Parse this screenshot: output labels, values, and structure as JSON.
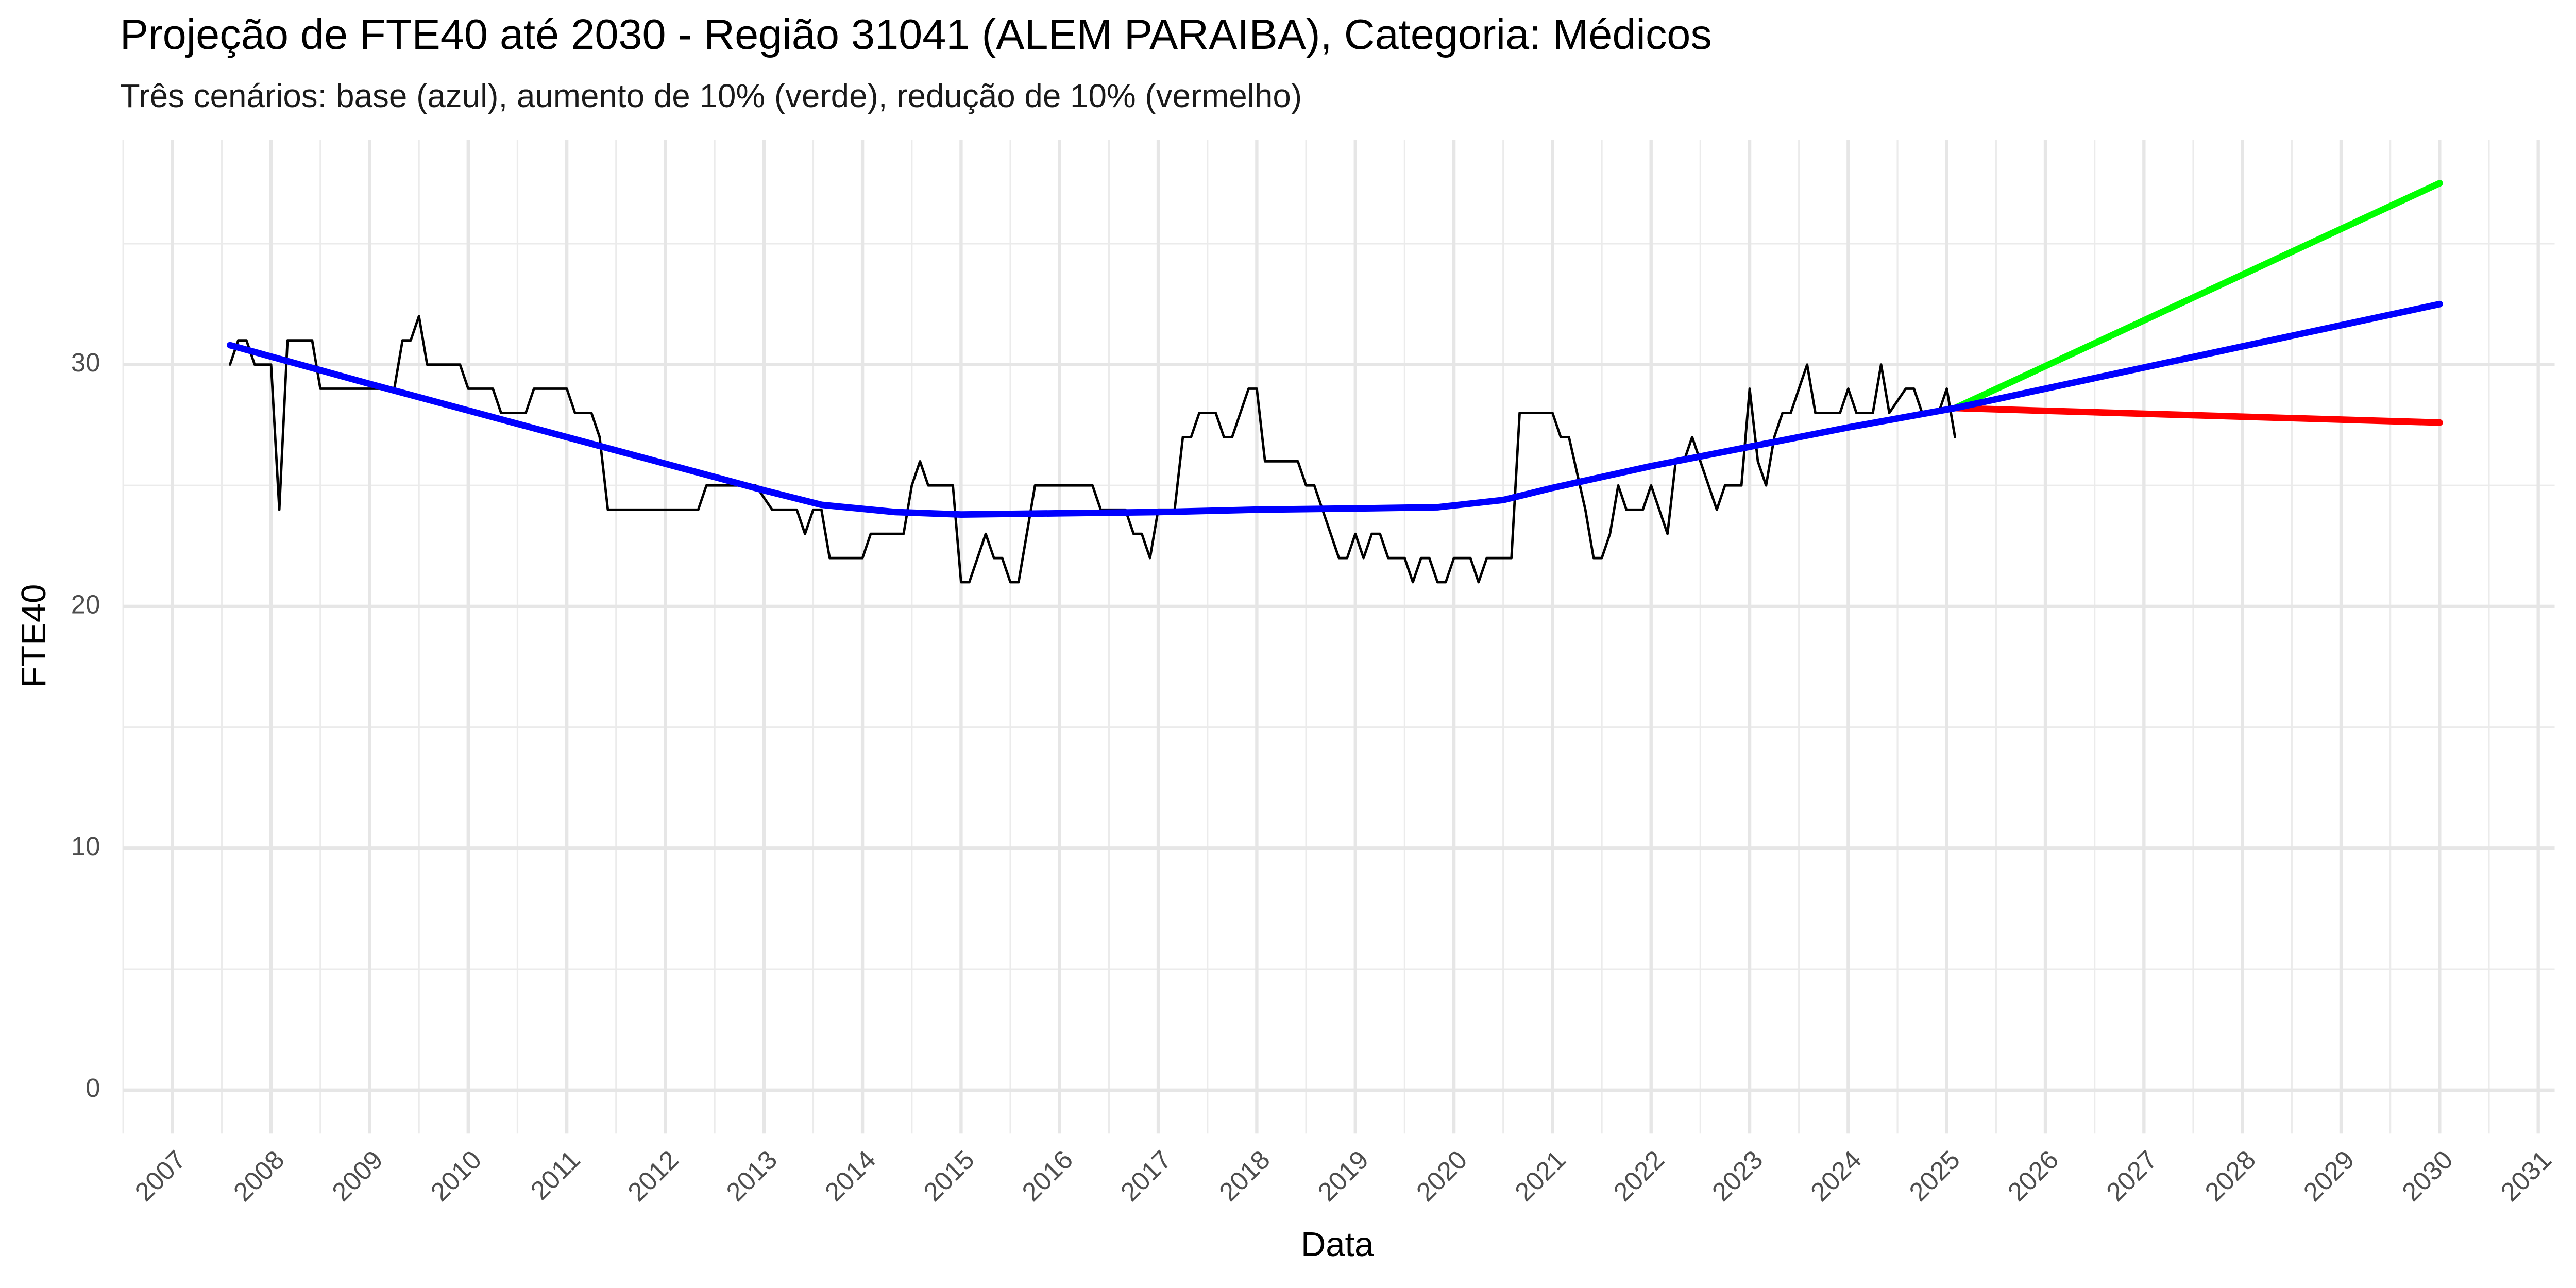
{
  "chart_data": {
    "type": "line",
    "title": "Projeção de FTE40 até 2030 - Região 31041 (ALEM  PARAIBA), Categoria: Médicos",
    "subtitle": "Três cenários: base (azul), aumento de 10% (verde), redução de 10% (vermelho)",
    "x_label": "Data",
    "y_label": "FTE40",
    "xlim": [
      "2006-07",
      "2031-03"
    ],
    "ylim": [
      -1.8,
      39.3
    ],
    "xticks": [
      {
        "value": "2007-01",
        "label": "2007"
      },
      {
        "value": "2008-01",
        "label": "2008"
      },
      {
        "value": "2009-01",
        "label": "2009"
      },
      {
        "value": "2010-01",
        "label": "2010"
      },
      {
        "value": "2011-01",
        "label": "2011"
      },
      {
        "value": "2012-01",
        "label": "2012"
      },
      {
        "value": "2013-01",
        "label": "2013"
      },
      {
        "value": "2014-01",
        "label": "2014"
      },
      {
        "value": "2015-01",
        "label": "2015"
      },
      {
        "value": "2016-01",
        "label": "2016"
      },
      {
        "value": "2017-01",
        "label": "2017"
      },
      {
        "value": "2018-01",
        "label": "2018"
      },
      {
        "value": "2019-01",
        "label": "2019"
      },
      {
        "value": "2020-01",
        "label": "2020"
      },
      {
        "value": "2021-01",
        "label": "2021"
      },
      {
        "value": "2022-01",
        "label": "2022"
      },
      {
        "value": "2023-01",
        "label": "2023"
      },
      {
        "value": "2024-01",
        "label": "2024"
      },
      {
        "value": "2025-01",
        "label": "2025"
      },
      {
        "value": "2026-01",
        "label": "2026"
      },
      {
        "value": "2027-01",
        "label": "2027"
      },
      {
        "value": "2028-01",
        "label": "2028"
      },
      {
        "value": "2029-01",
        "label": "2029"
      },
      {
        "value": "2030-01",
        "label": "2030"
      },
      {
        "value": "2031-01",
        "label": "2031"
      }
    ],
    "yticks": [
      0,
      10,
      20,
      30
    ],
    "grid": true,
    "series": [
      {
        "color": "#000000",
        "width": 1.5,
        "x": [
          "2007-08",
          "2007-09",
          "2007-10",
          "2007-11",
          "2008-01",
          "2008-02",
          "2008-03",
          "2008-06",
          "2008-07",
          "2009-04",
          "2009-05",
          "2009-06",
          "2009-07",
          "2009-08",
          "2009-12",
          "2010-01",
          "2010-04",
          "2010-05",
          "2010-08",
          "2010-09",
          "2011-01",
          "2011-02",
          "2011-04",
          "2011-05",
          "2011-06",
          "2012-05",
          "2012-06",
          "2012-12",
          "2013-02",
          "2013-05",
          "2013-06",
          "2013-07",
          "2013-08",
          "2013-09",
          "2014-01",
          "2014-02",
          "2014-06",
          "2014-07",
          "2014-08",
          "2014-09",
          "2014-12",
          "2015-01",
          "2015-02",
          "2015-04",
          "2015-05",
          "2015-06",
          "2015-07",
          "2015-08",
          "2015-10",
          "2016-05",
          "2016-06",
          "2016-09",
          "2016-10",
          "2016-11",
          "2016-12",
          "2017-01",
          "2017-03",
          "2017-04",
          "2017-05",
          "2017-06",
          "2017-08",
          "2017-09",
          "2017-10",
          "2017-11",
          "2017-12",
          "2018-01",
          "2018-02",
          "2018-06",
          "2018-07",
          "2018-08",
          "2018-09",
          "2018-11",
          "2018-12",
          "2019-01",
          "2019-02",
          "2019-03",
          "2019-04",
          "2019-05",
          "2019-07",
          "2019-08",
          "2019-09",
          "2019-10",
          "2019-11",
          "2019-12",
          "2020-01",
          "2020-03",
          "2020-04",
          "2020-05",
          "2020-08",
          "2020-09",
          "2021-01",
          "2021-02",
          "2021-03",
          "2021-05",
          "2021-06",
          "2021-07",
          "2021-08",
          "2021-09",
          "2021-10",
          "2021-12",
          "2022-01",
          "2022-03",
          "2022-04",
          "2022-05",
          "2022-06",
          "2022-08",
          "2022-09",
          "2022-10",
          "2022-12",
          "2023-01",
          "2023-02",
          "2023-03",
          "2023-04",
          "2023-05",
          "2023-06",
          "2023-08",
          "2023-09",
          "2023-12",
          "2024-01",
          "2024-02",
          "2024-04",
          "2024-05",
          "2024-06",
          "2024-08",
          "2024-09",
          "2024-10",
          "2024-12",
          "2025-01",
          "2025-02"
        ],
        "values": [
          30,
          31,
          31,
          30,
          30,
          24,
          31,
          31,
          29,
          29,
          31,
          31,
          32,
          30,
          30,
          29,
          29,
          28,
          28,
          29,
          29,
          28,
          28,
          27,
          24,
          24,
          25,
          25,
          24,
          24,
          23,
          24,
          24,
          22,
          22,
          23,
          23,
          25,
          26,
          25,
          25,
          21,
          21,
          23,
          22,
          22,
          21,
          21,
          25,
          25,
          24,
          24,
          23,
          23,
          22,
          24,
          24,
          27,
          27,
          28,
          28,
          27,
          27,
          28,
          29,
          29,
          26,
          26,
          25,
          25,
          24,
          22,
          22,
          23,
          22,
          23,
          23,
          22,
          22,
          21,
          22,
          22,
          21,
          21,
          22,
          22,
          21,
          22,
          22,
          28,
          28,
          27,
          27,
          24,
          22,
          22,
          23,
          25,
          24,
          24,
          25,
          23,
          26,
          26,
          27,
          25,
          24,
          25,
          25,
          29,
          26,
          25,
          27,
          28,
          28,
          30,
          28,
          28,
          29,
          28,
          28,
          30,
          28,
          29,
          29,
          28,
          28,
          29,
          27
        ]
      },
      {
        "color": "#00ff00",
        "width": 4,
        "x": [
          "2025-02",
          "2030-01"
        ],
        "values": [
          28.2,
          37.5
        ]
      },
      {
        "color": "#ff0000",
        "width": 4,
        "x": [
          "2025-02",
          "2030-01"
        ],
        "values": [
          28.2,
          27.6
        ]
      },
      {
        "color": "#0000ff",
        "width": 4,
        "x": [
          "2007-08",
          "2009-01",
          "2010-01",
          "2011-01",
          "2012-01",
          "2013-01",
          "2013-08",
          "2014-05",
          "2015-01",
          "2016-01",
          "2017-01",
          "2018-01",
          "2019-01",
          "2019-11",
          "2020-07",
          "2021-01",
          "2022-01",
          "2023-01",
          "2024-01",
          "2025-02",
          "2030-01"
        ],
        "values": [
          30.8,
          29.2,
          28.1,
          27.0,
          25.9,
          24.8,
          24.2,
          23.9,
          23.8,
          23.85,
          23.9,
          24.0,
          24.05,
          24.1,
          24.4,
          24.9,
          25.8,
          26.6,
          27.4,
          28.2,
          32.5
        ]
      }
    ]
  }
}
